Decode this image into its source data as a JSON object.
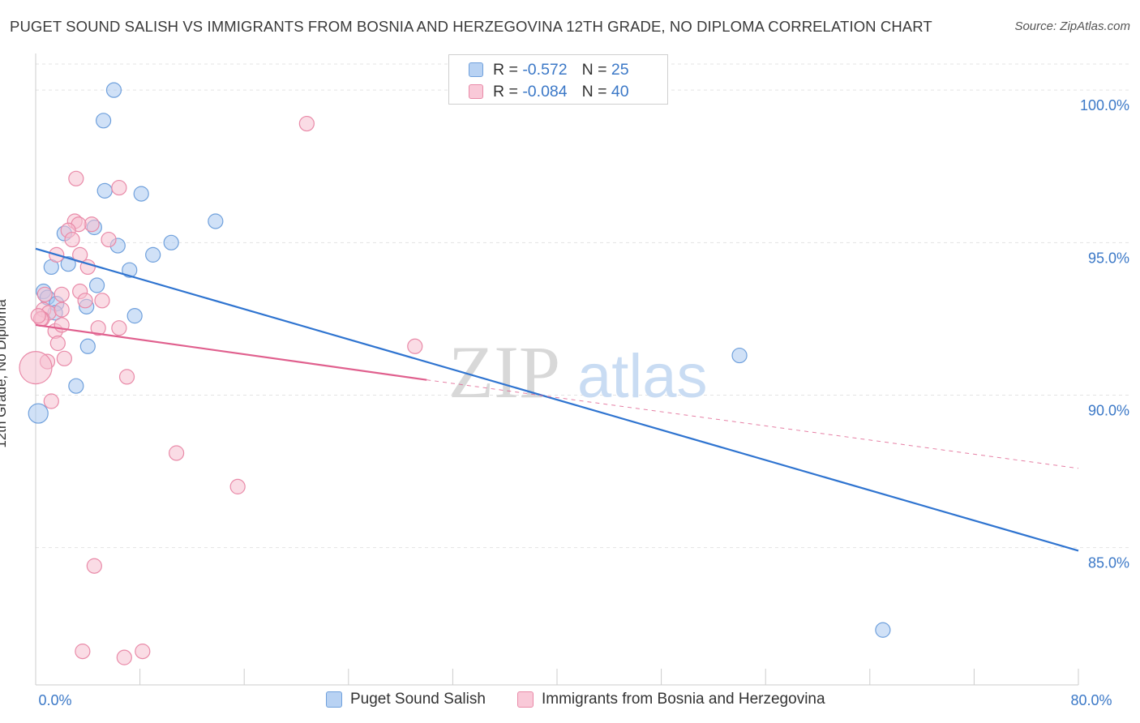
{
  "header": {
    "title": "PUGET SOUND SALISH VS IMMIGRANTS FROM BOSNIA AND HERZEGOVINA 12TH GRADE, NO DIPLOMA CORRELATION CHART",
    "source": "Source: ZipAtlas.com"
  },
  "watermark": {
    "part1": "ZIP",
    "part2": "atlas"
  },
  "colors": {
    "blue_fill": "#a9c8f0",
    "blue_stroke": "#6fa0dc",
    "blue_line": "#2f74d0",
    "pink_fill": "#f6bfd0",
    "pink_stroke": "#e98aa8",
    "pink_line": "#e0608e",
    "tick_label": "#3b78c7",
    "grid": "#e3e3e3"
  },
  "legend_top": {
    "rows": [
      {
        "r_label": "R =",
        "r_value": "-0.572",
        "n_label": "N =",
        "n_value": "25"
      },
      {
        "r_label": "R =",
        "r_value": "-0.084",
        "n_label": "N =",
        "n_value": "40"
      }
    ]
  },
  "chart_data": {
    "type": "scatter",
    "title": "PUGET SOUND SALISH VS IMMIGRANTS FROM BOSNIA AND HERZEGOVINA 12TH GRADE, NO DIPLOMA CORRELATION CHART",
    "xlabel": "",
    "ylabel": "12th Grade, No Diploma",
    "xlim": [
      0,
      80
    ],
    "ylim": [
      80.5,
      101.2
    ],
    "x_tick_labels": [
      {
        "value": 0,
        "label": "0.0%"
      },
      {
        "value": 80,
        "label": "80.0%"
      }
    ],
    "y_ticks": [
      {
        "value": 100,
        "label": "100.0%"
      },
      {
        "value": 95,
        "label": "95.0%"
      },
      {
        "value": 90,
        "label": "90.0%"
      },
      {
        "value": 85,
        "label": "85.0%"
      }
    ],
    "x_minor_ticks": [
      0,
      8,
      16,
      24,
      32,
      40,
      48,
      56,
      64,
      72,
      80
    ],
    "series": [
      {
        "name": "Puget Sound Salish",
        "color": "blue",
        "r": -0.572,
        "n": 25,
        "points": [
          [
            6.0,
            100.0
          ],
          [
            5.2,
            99.0
          ],
          [
            5.3,
            96.7
          ],
          [
            8.1,
            96.6
          ],
          [
            13.8,
            95.7
          ],
          [
            4.5,
            95.5
          ],
          [
            2.2,
            95.3
          ],
          [
            6.3,
            94.9
          ],
          [
            10.4,
            95.0
          ],
          [
            9.0,
            94.6
          ],
          [
            1.2,
            94.2
          ],
          [
            2.5,
            94.3
          ],
          [
            7.2,
            94.1
          ],
          [
            4.7,
            93.6
          ],
          [
            0.6,
            93.4
          ],
          [
            0.9,
            93.2
          ],
          [
            1.6,
            93.0
          ],
          [
            3.9,
            92.9
          ],
          [
            1.5,
            92.7
          ],
          [
            7.6,
            92.6
          ],
          [
            4.0,
            91.6
          ],
          [
            3.1,
            90.3
          ],
          [
            0.2,
            89.4
          ],
          [
            54.0,
            91.3
          ],
          [
            65.0,
            82.3
          ]
        ],
        "trend": {
          "x1": 0,
          "y1": 94.8,
          "x2": 80,
          "y2": 84.9,
          "dashed_to": null
        }
      },
      {
        "name": "Immigrants from Bosnia and Herzegovina",
        "color": "pink",
        "r": -0.084,
        "n": 40,
        "points": [
          [
            20.8,
            98.9
          ],
          [
            3.1,
            97.1
          ],
          [
            6.4,
            96.8
          ],
          [
            3.0,
            95.7
          ],
          [
            4.3,
            95.6
          ],
          [
            3.3,
            95.6
          ],
          [
            2.5,
            95.4
          ],
          [
            2.8,
            95.1
          ],
          [
            5.6,
            95.1
          ],
          [
            1.6,
            94.6
          ],
          [
            3.4,
            94.6
          ],
          [
            4.0,
            94.2
          ],
          [
            3.4,
            93.4
          ],
          [
            2.0,
            93.3
          ],
          [
            0.7,
            93.3
          ],
          [
            5.1,
            93.1
          ],
          [
            3.8,
            93.1
          ],
          [
            0.6,
            92.8
          ],
          [
            1.0,
            92.7
          ],
          [
            2.0,
            92.8
          ],
          [
            0.5,
            92.5
          ],
          [
            0.4,
            92.5
          ],
          [
            0.2,
            92.6
          ],
          [
            4.8,
            92.2
          ],
          [
            6.4,
            92.2
          ],
          [
            1.5,
            92.1
          ],
          [
            1.7,
            91.7
          ],
          [
            29.1,
            91.6
          ],
          [
            2.2,
            91.2
          ],
          [
            0.9,
            91.1
          ],
          [
            0.0,
            90.9
          ],
          [
            7.0,
            90.6
          ],
          [
            1.2,
            89.8
          ],
          [
            10.8,
            88.1
          ],
          [
            15.5,
            87.0
          ],
          [
            4.5,
            84.4
          ],
          [
            3.6,
            81.6
          ],
          [
            8.2,
            81.6
          ],
          [
            6.8,
            81.4
          ],
          [
            2.0,
            92.3
          ]
        ],
        "trend": {
          "x1": 0,
          "y1": 92.3,
          "x2": 30,
          "y2": 90.5,
          "dashed_to": {
            "x": 80,
            "y": 87.6
          }
        }
      }
    ]
  },
  "bottom_legend": {
    "items": [
      {
        "label": "Puget Sound Salish"
      },
      {
        "label": "Immigrants from Bosnia and Herzegovina"
      }
    ]
  }
}
